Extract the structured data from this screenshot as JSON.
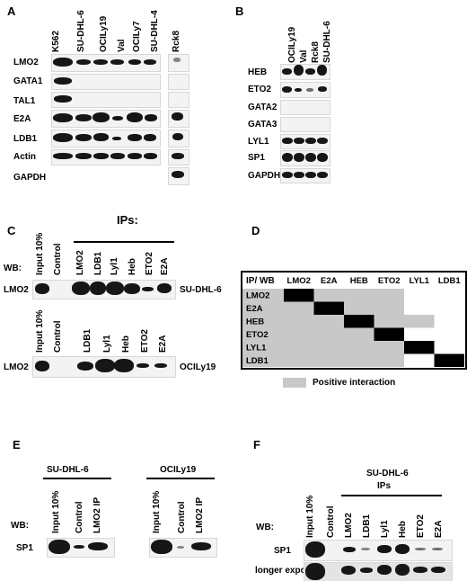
{
  "panels": {
    "A": {
      "letter": "A",
      "lanes": [
        "K562",
        "SU-DHL-6",
        "OCILy19",
        "Val",
        "OCILy7",
        "SU-DHL-4",
        "Rck8"
      ],
      "rows": [
        "LMO2",
        "GATA1",
        "TAL1",
        "E2A",
        "LDB1",
        "Actin",
        "GAPDH"
      ]
    },
    "B": {
      "letter": "B",
      "lanes": [
        "OCILy19",
        "Val",
        "Rck8",
        "SU-DHL-6"
      ],
      "rows": [
        "HEB",
        "ETO2",
        "GATA2",
        "GATA3",
        "LYL1",
        "SP1",
        "GAPDH"
      ]
    },
    "C": {
      "letter": "C",
      "ips_title": "IPs:",
      "wb_label": "WB:",
      "top": {
        "lanes": [
          "Input 10%",
          "Control",
          "LMO2",
          "LDB1",
          "Lyl1",
          "Heb",
          "ETO2",
          "E2A"
        ],
        "row": "LMO2",
        "cell_line": "SU-DHL-6"
      },
      "bottom": {
        "lanes": [
          "Input 10%",
          "Control",
          "LDB1",
          "Lyl1",
          "Heb",
          "ETO2",
          "E2A"
        ],
        "row": "LMO2",
        "cell_line": "OCILy19"
      }
    },
    "D": {
      "letter": "D",
      "corner": "IP/ WB",
      "columns": [
        "LMO2",
        "E2A",
        "HEB",
        "ETO2",
        "LYL1",
        "LDB1"
      ],
      "rows": [
        "LMO2",
        "E2A",
        "HEB",
        "ETO2",
        "LYL1",
        "LDB1"
      ],
      "legend": "Positive interaction"
    },
    "E": {
      "letter": "E",
      "wb_label": "WB:",
      "row": "SP1",
      "groups": [
        {
          "cell_line": "SU-DHL-6",
          "lanes": [
            "Input 10%",
            "Control",
            "LMO2 IP"
          ]
        },
        {
          "cell_line": "OCILy19",
          "lanes": [
            "Input 10%",
            "Control",
            "LMO2 IP"
          ]
        }
      ]
    },
    "F": {
      "letter": "F",
      "title_line1": "SU-DHL-6",
      "title_line2": "IPs",
      "wb_label": "WB:",
      "lanes": [
        "Input 10%",
        "Control",
        "LMO2",
        "LDB1",
        "Lyl1",
        "Heb",
        "ETO2",
        "E2A"
      ],
      "rows": [
        "SP1",
        "longer exposure"
      ]
    }
  },
  "colors": {
    "positive": "#c8c8c8",
    "self": "#000000"
  }
}
